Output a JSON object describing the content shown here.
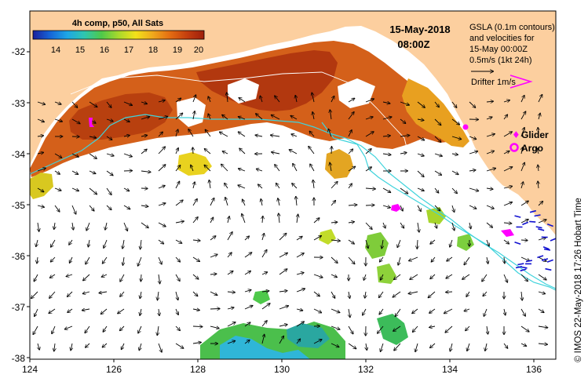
{
  "colorbar": {
    "title": "4h comp, p50, All Sats",
    "ticks": [
      "14",
      "15",
      "16",
      "17",
      "18",
      "19",
      "20"
    ],
    "range": [
      13.3,
      20.0
    ],
    "colors": [
      "#1b1f9c",
      "#1565d8",
      "#1ea6e6",
      "#2fc6b0",
      "#4ec94a",
      "#a8d92c",
      "#f2e21a",
      "#f0a81c",
      "#e46d12",
      "#c43e0e",
      "#9e1f0c"
    ]
  },
  "date_title": {
    "date": "15-May-2018",
    "time": "08:00Z"
  },
  "legend": {
    "line1": "GSLA (0.1m contours)",
    "line2": "and velocities for",
    "line3": "15-May 00:00Z",
    "line4": "0.5m/s (1kt 24h)",
    "drifter": "Drifter 1m/s",
    "glider": "Glider",
    "argo": "Argo"
  },
  "axes": {
    "x_ticks": [
      "124",
      "126",
      "128",
      "130",
      "132",
      "134",
      "136"
    ],
    "y_ticks": [
      "-32",
      "-33",
      "-34",
      "-35",
      "-36",
      "-37",
      "-38"
    ],
    "xlim": [
      124,
      136.5
    ],
    "ylim": [
      -38.15,
      -31.35
    ]
  },
  "credit": "© IMOS 22-May-2018 17:26 Hobart Time",
  "colors": {
    "land": "#fccf9f",
    "shelf_contour": "#3fd3dc",
    "glider_argo": "#ff00ff",
    "drifter": "#1010d0"
  }
}
